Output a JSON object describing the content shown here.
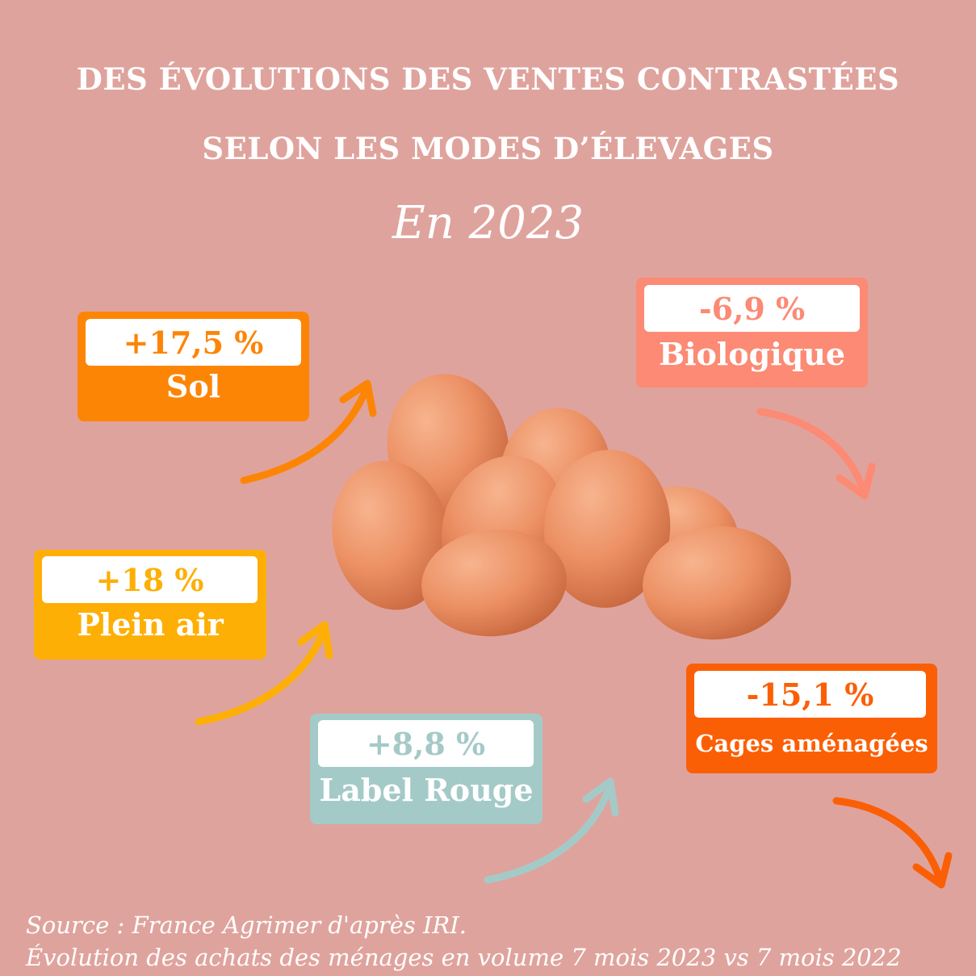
{
  "header": {
    "title_line1": "DES ÉVOLUTIONS DES VENTES CONTRASTÉES",
    "title_line2": "SELON LES MODES D’ÉLEVAGES",
    "subtitle": "En 2023"
  },
  "cards": {
    "sol": {
      "value": "+17,5 %",
      "label": "Sol",
      "color": "#fd8506",
      "trend": "up"
    },
    "plein_air": {
      "value": "+18 %",
      "label": "Plein air",
      "color": "#feaf05",
      "trend": "up"
    },
    "label_rouge": {
      "value": "+8,8 %",
      "label": "Label Rouge",
      "color": "#a4cac8",
      "trend": "up"
    },
    "biologique": {
      "value": "-6,9 %",
      "label": "Biologique",
      "color": "#fc8a74",
      "trend": "down"
    },
    "cages": {
      "value": "-15,1 %",
      "label": "Cages aménagées",
      "color": "#fb5f05",
      "trend": "down"
    }
  },
  "illustration": {
    "icon": "eggs-pile-icon",
    "color": "#f0976a"
  },
  "footer": {
    "source_line1": "Source : France Agrimer d'après IRI.",
    "source_line2": "Évolution des achats des ménages en volume 7 mois 2023 vs 7 mois 2022"
  },
  "colors": {
    "background": "#dfa39d",
    "text": "#ffffff"
  }
}
